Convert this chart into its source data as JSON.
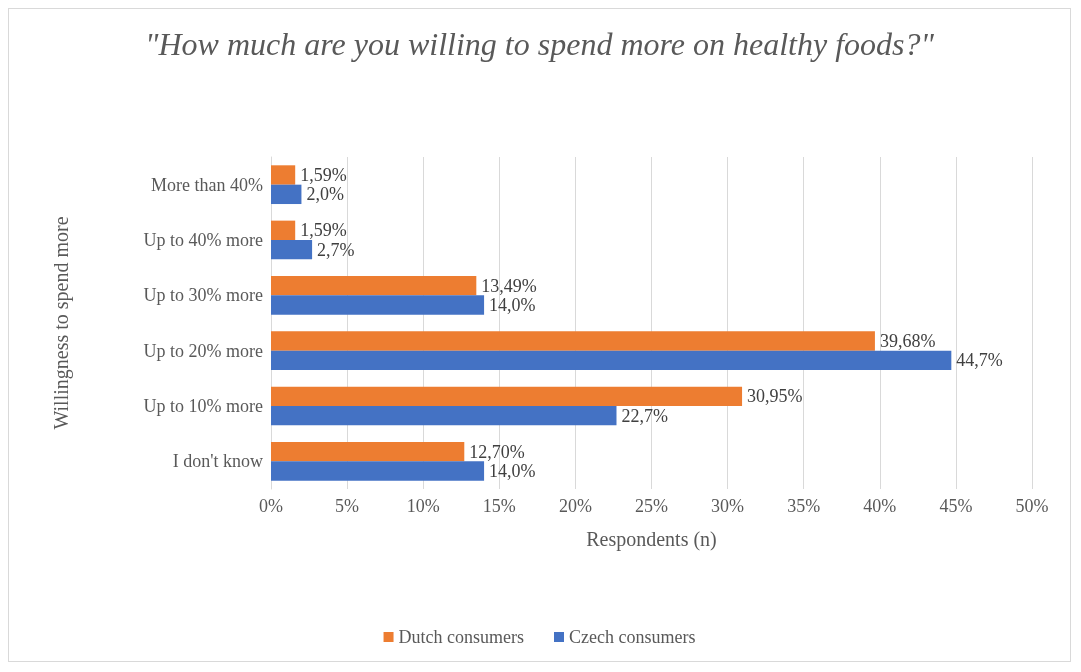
{
  "chart_data": {
    "type": "bar",
    "orientation": "horizontal",
    "title": "\"How much are you willing to spend more on healthy foods?\"",
    "xlabel": "Respondents (n)",
    "ylabel": "Willingness to spend more",
    "categories": [
      "More than 40%",
      "Up to 40% more",
      "Up to 30% more",
      "Up to 20% more",
      "Up to 10% more",
      "I don't know"
    ],
    "series": [
      {
        "name": "Dutch consumers",
        "color": "#ed7d31",
        "values": [
          1.59,
          1.59,
          13.49,
          39.68,
          30.95,
          12.7
        ],
        "value_labels": [
          "1,59%",
          "1,59%",
          "13,49%",
          "39,68%",
          "30,95%",
          "12,70%"
        ]
      },
      {
        "name": "Czech consumers",
        "color": "#4472c4",
        "values": [
          2.0,
          2.7,
          14.0,
          44.7,
          22.7,
          14.0
        ],
        "value_labels": [
          "2,0%",
          "2,7%",
          "14,0%",
          "44,7%",
          "22,7%",
          "14,0%"
        ]
      }
    ],
    "xlim": [
      0,
      50
    ],
    "xticks": [
      {
        "value": 0,
        "label": "0%"
      },
      {
        "value": 5,
        "label": "5%"
      },
      {
        "value": 10,
        "label": "10%"
      },
      {
        "value": 15,
        "label": "15%"
      },
      {
        "value": 20,
        "label": "20%"
      },
      {
        "value": 25,
        "label": "25%"
      },
      {
        "value": 30,
        "label": "30%"
      },
      {
        "value": 35,
        "label": "35%"
      },
      {
        "value": 40,
        "label": "40%"
      },
      {
        "value": 45,
        "label": "45%"
      },
      {
        "value": 50,
        "label": "50%"
      }
    ],
    "grid": "x",
    "legend": "bottom"
  }
}
